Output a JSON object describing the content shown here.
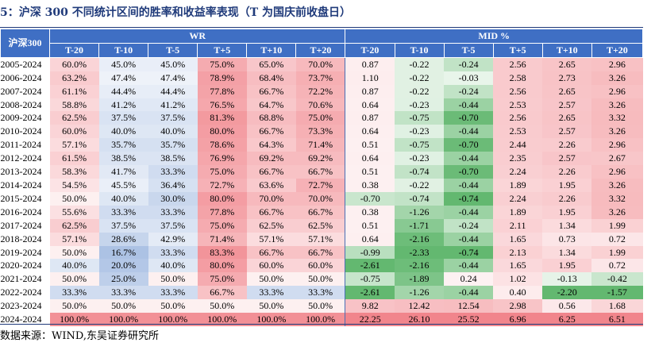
{
  "title": "5：沪深 300 不同统计区间的胜率和收益率表现（T 为国庆前收盘日）",
  "source": "数据来源：WIND,东吴证券研究所",
  "colors": {
    "header_blue": "#3f6fc4",
    "rule": "#1f3a7a",
    "wr_high": "#f07f86",
    "wr_low": "#9cb6df",
    "mid_pos": "#f07f86",
    "mid_neg": "#52b060"
  },
  "chart_data": {
    "type": "table",
    "title": "5：沪深 300 不同统计区间的胜率和收益率表现（T 为国庆前收盘日）",
    "corner_label": "沪深300",
    "groups": [
      {
        "label": "WR",
        "span": 6
      },
      {
        "label": "MID %",
        "span": 6
      }
    ],
    "columns": [
      "T-20",
      "T-10",
      "T-5",
      "T+5",
      "T+10",
      "T+20",
      "T-20",
      "T-10",
      "T-5",
      "T+5",
      "T+10",
      "T+20"
    ],
    "rows": [
      {
        "label": "2005-2024",
        "wr": [
          "60.0%",
          "45.0%",
          "45.0%",
          "75.0%",
          "65.0%",
          "70.0%"
        ],
        "mid": [
          "0.87",
          "-0.22",
          "-0.24",
          "2.56",
          "2.65",
          "2.96"
        ]
      },
      {
        "label": "2006-2024",
        "wr": [
          "63.2%",
          "47.4%",
          "47.4%",
          "78.9%",
          "68.4%",
          "73.7%"
        ],
        "mid": [
          "1.10",
          "-0.22",
          "-0.03",
          "2.58",
          "2.73",
          "3.26"
        ]
      },
      {
        "label": "2007-2024",
        "wr": [
          "61.1%",
          "44.4%",
          "44.4%",
          "77.8%",
          "66.7%",
          "72.2%"
        ],
        "mid": [
          "0.87",
          "-0.22",
          "-0.24",
          "2.56",
          "2.65",
          "2.96"
        ]
      },
      {
        "label": "2008-2024",
        "wr": [
          "58.8%",
          "41.2%",
          "41.2%",
          "76.5%",
          "64.7%",
          "70.6%"
        ],
        "mid": [
          "0.64",
          "-0.23",
          "-0.44",
          "2.53",
          "2.57",
          "3.26"
        ]
      },
      {
        "label": "2009-2024",
        "wr": [
          "62.5%",
          "37.5%",
          "37.5%",
          "81.3%",
          "68.8%",
          "75.0%"
        ],
        "mid": [
          "0.87",
          "-0.75",
          "-0.70",
          "2.56",
          "2.65",
          "3.32"
        ]
      },
      {
        "label": "2010-2024",
        "wr": [
          "60.0%",
          "40.0%",
          "40.0%",
          "80.0%",
          "66.7%",
          "73.3%"
        ],
        "mid": [
          "0.64",
          "-0.23",
          "-0.44",
          "2.53",
          "2.57",
          "3.26"
        ]
      },
      {
        "label": "2011-2024",
        "wr": [
          "57.1%",
          "35.7%",
          "35.7%",
          "78.6%",
          "64.3%",
          "71.4%"
        ],
        "mid": [
          "0.51",
          "-0.75",
          "-0.70",
          "2.44",
          "2.26",
          "2.96"
        ]
      },
      {
        "label": "2012-2024",
        "wr": [
          "61.5%",
          "38.5%",
          "38.5%",
          "76.9%",
          "69.2%",
          "69.2%"
        ],
        "mid": [
          "0.64",
          "-0.23",
          "-0.44",
          "2.35",
          "2.57",
          "2.67"
        ]
      },
      {
        "label": "2013-2024",
        "wr": [
          "58.3%",
          "41.7%",
          "33.3%",
          "75.0%",
          "66.7%",
          "66.7%"
        ],
        "mid": [
          "0.51",
          "-0.74",
          "-0.70",
          "2.24",
          "2.26",
          "2.96"
        ]
      },
      {
        "label": "2014-2024",
        "wr": [
          "54.5%",
          "45.5%",
          "36.4%",
          "72.7%",
          "63.6%",
          "72.7%"
        ],
        "mid": [
          "0.38",
          "-0.22",
          "-0.44",
          "1.89",
          "1.95",
          "3.26"
        ]
      },
      {
        "label": "2015-2024",
        "wr": [
          "50.0%",
          "40.0%",
          "30.0%",
          "80.0%",
          "70.0%",
          "70.0%"
        ],
        "mid": [
          "-0.70",
          "-0.74",
          "-0.74",
          "2.24",
          "2.26",
          "3.32"
        ]
      },
      {
        "label": "2016-2024",
        "wr": [
          "55.6%",
          "33.3%",
          "33.3%",
          "77.8%",
          "66.7%",
          "66.7%"
        ],
        "mid": [
          "0.38",
          "-1.26",
          "-0.44",
          "1.89",
          "1.95",
          "3.26"
        ]
      },
      {
        "label": "2017-2024",
        "wr": [
          "62.5%",
          "37.5%",
          "37.5%",
          "75.0%",
          "62.5%",
          "62.5%"
        ],
        "mid": [
          "0.51",
          "-1.71",
          "-0.24",
          "2.11",
          "1.34",
          "1.99"
        ]
      },
      {
        "label": "2018-2024",
        "wr": [
          "57.1%",
          "28.6%",
          "42.9%",
          "71.4%",
          "57.1%",
          "57.1%"
        ],
        "mid": [
          "0.64",
          "-2.16",
          "-0.44",
          "1.65",
          "0.73",
          "0.72"
        ]
      },
      {
        "label": "2019-2024",
        "wr": [
          "50.0%",
          "16.7%",
          "33.3%",
          "83.3%",
          "66.7%",
          "66.7%"
        ],
        "mid": [
          "-0.99",
          "-2.33",
          "-0.74",
          "2.13",
          "1.34",
          "1.99"
        ]
      },
      {
        "label": "2020-2024",
        "wr": [
          "40.0%",
          "20.0%",
          "40.0%",
          "80.0%",
          "60.0%",
          "60.0%"
        ],
        "mid": [
          "-2.61",
          "-2.16",
          "-0.44",
          "1.65",
          "1.95",
          "0.72"
        ]
      },
      {
        "label": "2021-2024",
        "wr": [
          "50.0%",
          "25.0%",
          "50.0%",
          "75.0%",
          "50.0%",
          "50.0%"
        ],
        "mid": [
          "-0.75",
          "-1.89",
          "0.24",
          "1.02",
          "-0.13",
          "-0.42"
        ]
      },
      {
        "label": "2022-2024",
        "wr": [
          "33.3%",
          "33.3%",
          "33.3%",
          "66.7%",
          "33.3%",
          "33.3%"
        ],
        "mid": [
          "-2.61",
          "-1.26",
          "-0.44",
          "0.40",
          "-2.20",
          "-1.57"
        ]
      },
      {
        "label": "2023-2024",
        "wr": [
          "50.0%",
          "50.0%",
          "50.0%",
          "50.0%",
          "50.0%",
          "50.0%"
        ],
        "mid": [
          "9.82",
          "12.42",
          "12.54",
          "2.98",
          "0.56",
          "1.68"
        ]
      },
      {
        "label": "2024-2024",
        "wr": [
          "100.0%",
          "100.0%",
          "100.0%",
          "100.0%",
          "100.0%",
          "100.0%"
        ],
        "mid": [
          "22.25",
          "26.10",
          "25.52",
          "6.96",
          "6.25",
          "6.51"
        ]
      }
    ]
  }
}
